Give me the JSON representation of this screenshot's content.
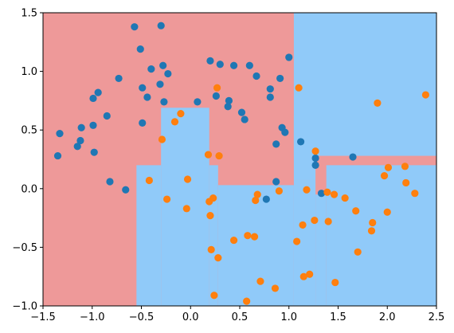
{
  "chart_data": {
    "type": "scatter",
    "title": "",
    "xlabel": "",
    "ylabel": "",
    "xlim": [
      -1.5,
      2.5
    ],
    "ylim": [
      -1.0,
      1.5
    ],
    "grid": false,
    "legend": "none",
    "xticks": [
      -1.5,
      -1.0,
      -0.5,
      0.0,
      0.5,
      1.0,
      1.5,
      2.0,
      2.5
    ],
    "xtick_labels": [
      "−1.5",
      "−1.0",
      "−0.5",
      "0.0",
      "0.5",
      "1.0",
      "1.5",
      "2.0",
      "2.5"
    ],
    "yticks": [
      -1.0,
      -0.5,
      0.0,
      0.5,
      1.0,
      1.5
    ],
    "ytick_labels": [
      "−1.0",
      "−0.5",
      "0.0",
      "0.5",
      "1.0",
      "1.5"
    ],
    "colors": {
      "region_class0": "#ee9999",
      "region_class1": "#90caf9",
      "class0": "#1f77b4",
      "class1": "#ff7f0e",
      "boundary": "#ffffff"
    },
    "decision_regions": {
      "background_class": 0,
      "class1_rects": [
        {
          "x": [
            -0.55,
            -0.3
          ],
          "y": [
            -1.0,
            0.2
          ]
        },
        {
          "x": [
            -0.3,
            0.19
          ],
          "y": [
            -1.0,
            0.69
          ]
        },
        {
          "x": [
            0.19,
            0.28
          ],
          "y": [
            -1.0,
            0.2
          ]
        },
        {
          "x": [
            0.28,
            1.05
          ],
          "y": [
            -1.0,
            0.03
          ]
        },
        {
          "x": [
            1.05,
            1.27
          ],
          "y": [
            -1.0,
            0.08
          ]
        },
        {
          "x": [
            1.27,
            1.38
          ],
          "y": [
            -1.0,
            -0.05
          ]
        },
        {
          "x": [
            1.38,
            2.5
          ],
          "y": [
            -1.0,
            0.2
          ]
        },
        {
          "x": [
            1.05,
            2.5
          ],
          "y": [
            0.28,
            1.5
          ]
        },
        {
          "x": [
            1.05,
            1.27
          ],
          "y": [
            0.08,
            0.62
          ]
        }
      ]
    },
    "series": [
      {
        "class": 0,
        "points": [
          [
            -1.35,
            0.28
          ],
          [
            -1.33,
            0.47
          ],
          [
            -1.15,
            0.36
          ],
          [
            -1.12,
            0.41
          ],
          [
            -1.11,
            0.52
          ],
          [
            -0.99,
            0.54
          ],
          [
            -0.99,
            0.77
          ],
          [
            -0.98,
            0.31
          ],
          [
            -0.94,
            0.82
          ],
          [
            -0.85,
            0.62
          ],
          [
            -0.82,
            0.06
          ],
          [
            -0.73,
            0.94
          ],
          [
            -0.66,
            -0.01
          ],
          [
            -0.57,
            1.38
          ],
          [
            -0.51,
            1.19
          ],
          [
            -0.49,
            0.86
          ],
          [
            -0.49,
            0.56
          ],
          [
            -0.44,
            0.78
          ],
          [
            -0.4,
            1.02
          ],
          [
            -0.31,
            0.89
          ],
          [
            -0.3,
            1.39
          ],
          [
            -0.28,
            1.05
          ],
          [
            -0.27,
            0.74
          ],
          [
            -0.23,
            0.98
          ],
          [
            0.07,
            0.74
          ],
          [
            0.2,
            1.09
          ],
          [
            0.26,
            0.79
          ],
          [
            0.3,
            1.06
          ],
          [
            0.38,
            0.7
          ],
          [
            0.39,
            0.75
          ],
          [
            0.44,
            1.05
          ],
          [
            0.52,
            0.65
          ],
          [
            0.55,
            0.59
          ],
          [
            0.6,
            1.05
          ],
          [
            0.67,
            0.96
          ],
          [
            0.77,
            -0.09
          ],
          [
            0.81,
            0.85
          ],
          [
            0.81,
            0.78
          ],
          [
            0.87,
            0.06
          ],
          [
            0.87,
            0.38
          ],
          [
            0.91,
            0.94
          ],
          [
            0.93,
            0.52
          ],
          [
            0.96,
            0.48
          ],
          [
            1.0,
            1.12
          ],
          [
            1.12,
            0.4
          ],
          [
            1.27,
            0.26
          ],
          [
            1.27,
            0.2
          ],
          [
            1.33,
            -0.04
          ],
          [
            1.65,
            0.27
          ]
        ]
      },
      {
        "class": 1,
        "points": [
          [
            -0.42,
            0.07
          ],
          [
            -0.29,
            0.42
          ],
          [
            -0.24,
            -0.09
          ],
          [
            -0.16,
            0.57
          ],
          [
            -0.1,
            0.64
          ],
          [
            -0.04,
            -0.17
          ],
          [
            -0.03,
            0.08
          ],
          [
            0.18,
            0.29
          ],
          [
            0.19,
            -0.11
          ],
          [
            0.2,
            -0.23
          ],
          [
            0.21,
            -0.52
          ],
          [
            0.23,
            -0.08
          ],
          [
            0.24,
            -0.91
          ],
          [
            0.27,
            0.86
          ],
          [
            0.28,
            -0.59
          ],
          [
            0.29,
            0.28
          ],
          [
            0.44,
            -0.44
          ],
          [
            0.57,
            -0.96
          ],
          [
            0.58,
            -0.4
          ],
          [
            0.65,
            -0.41
          ],
          [
            0.66,
            -0.1
          ],
          [
            0.68,
            -0.05
          ],
          [
            0.71,
            -0.79
          ],
          [
            0.86,
            -0.85
          ],
          [
            0.9,
            -0.02
          ],
          [
            1.08,
            -0.45
          ],
          [
            1.1,
            0.86
          ],
          [
            1.14,
            -0.31
          ],
          [
            1.15,
            -0.75
          ],
          [
            1.18,
            -0.01
          ],
          [
            1.21,
            -0.73
          ],
          [
            1.26,
            -0.27
          ],
          [
            1.27,
            0.32
          ],
          [
            1.39,
            -0.03
          ],
          [
            1.4,
            -0.28
          ],
          [
            1.46,
            -0.05
          ],
          [
            1.47,
            -0.8
          ],
          [
            1.57,
            -0.08
          ],
          [
            1.68,
            -0.19
          ],
          [
            1.7,
            -0.54
          ],
          [
            1.84,
            -0.36
          ],
          [
            1.85,
            -0.29
          ],
          [
            1.9,
            0.73
          ],
          [
            1.97,
            0.11
          ],
          [
            2.0,
            -0.2
          ],
          [
            2.01,
            0.18
          ],
          [
            2.18,
            0.19
          ],
          [
            2.19,
            0.05
          ],
          [
            2.28,
            -0.04
          ],
          [
            2.39,
            0.8
          ]
        ]
      }
    ]
  }
}
